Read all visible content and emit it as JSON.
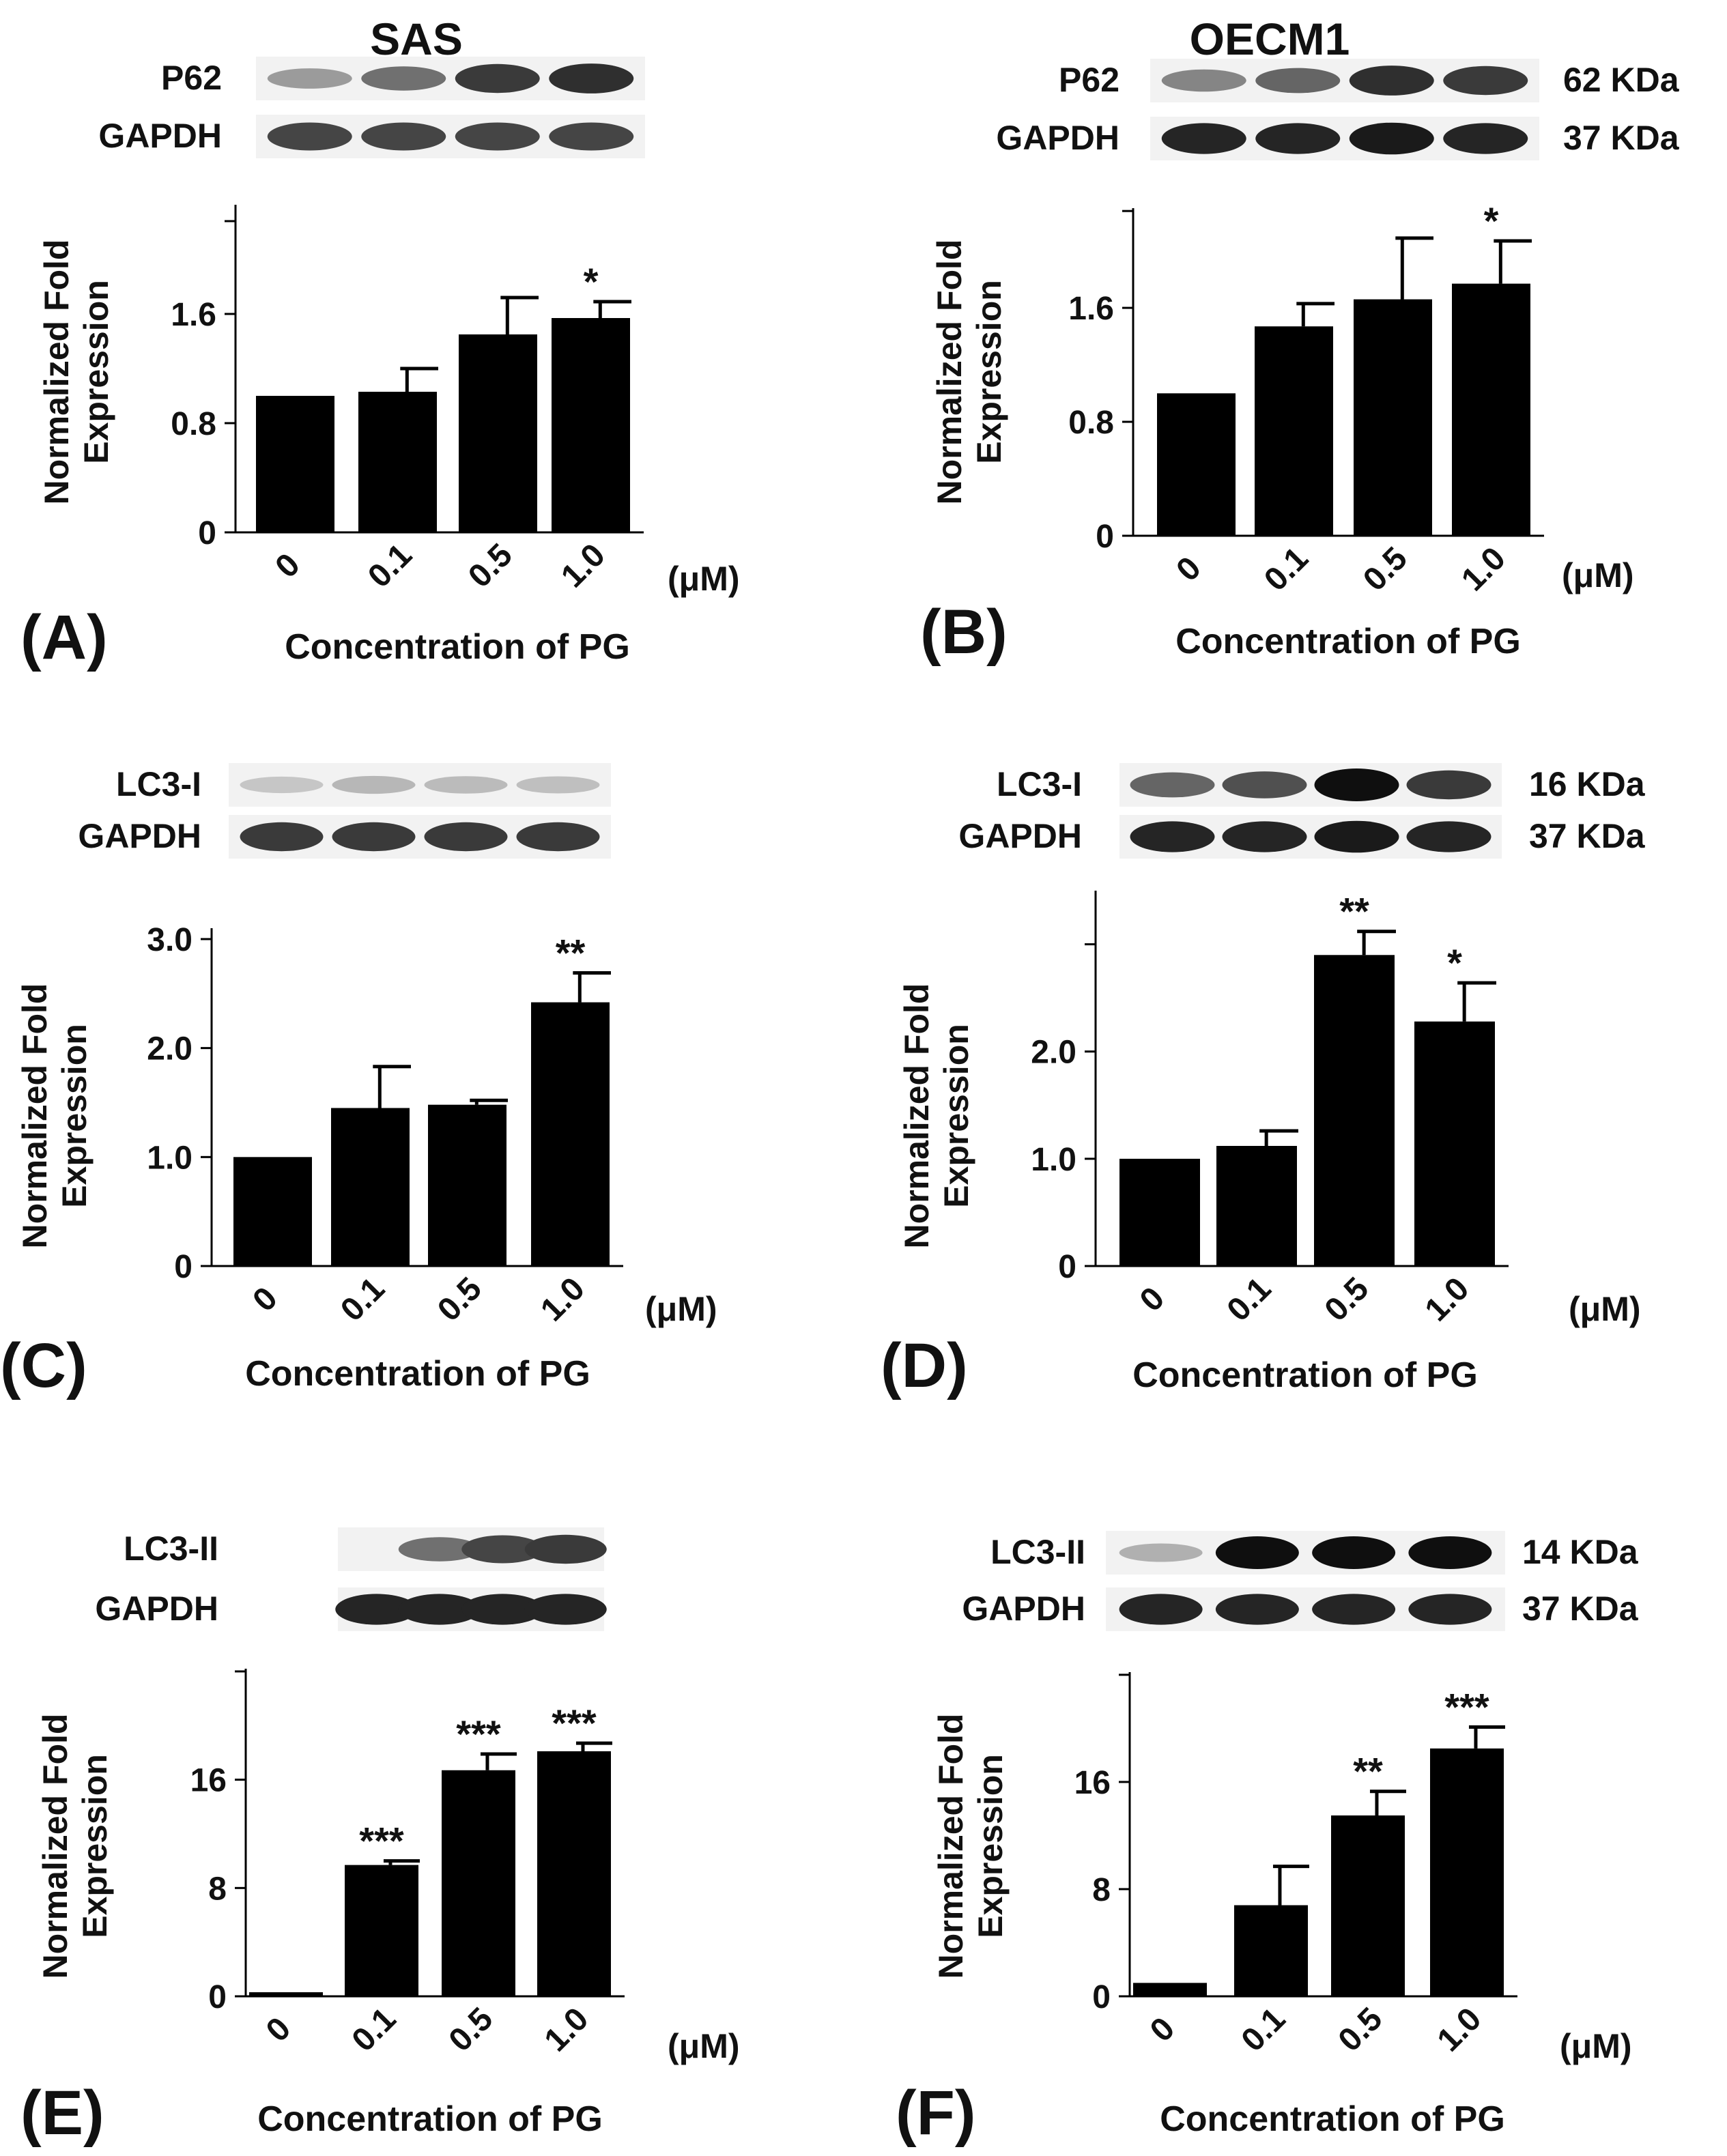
{
  "figure": {
    "columns": [
      "SAS",
      "OECM1"
    ],
    "x_axis_title": "Concentration of PG",
    "x_unit": "(μM)"
  },
  "chart_data": [
    {
      "type": "bar",
      "panel": "(A)",
      "cell_line": "SAS",
      "blots": [
        {
          "label": "P62",
          "kda": ""
        },
        {
          "label": "GAPDH",
          "kda": ""
        }
      ],
      "categories": [
        "0",
        "0.1",
        "0.5",
        "1.0"
      ],
      "values": [
        1.0,
        1.03,
        1.45,
        1.57
      ],
      "errors": [
        0,
        0.17,
        0.27,
        0.12
      ],
      "significance": [
        "",
        "",
        "",
        "*"
      ],
      "yticks": [
        "0",
        "0.8",
        "1.6"
      ],
      "ylim": [
        0,
        2.4
      ],
      "xlabel": "Concentration of PG",
      "ylabel": "Normalized Fold Expression"
    },
    {
      "type": "bar",
      "panel": "(B)",
      "cell_line": "OECM1",
      "blots": [
        {
          "label": "P62",
          "kda": "62 KDa"
        },
        {
          "label": "GAPDH",
          "kda": "37 KDa"
        }
      ],
      "categories": [
        "0",
        "0.1",
        "0.5",
        "1.0"
      ],
      "values": [
        1.0,
        1.47,
        1.66,
        1.77
      ],
      "errors": [
        0,
        0.16,
        0.43,
        0.3
      ],
      "significance": [
        "",
        "",
        "",
        "*"
      ],
      "yticks": [
        "0",
        "0.8",
        "1.6"
      ],
      "ylim": [
        0,
        2.3
      ],
      "xlabel": "Concentration of PG",
      "ylabel": "Normalized Fold Expression"
    },
    {
      "type": "bar",
      "panel": "(C)",
      "cell_line": "SAS",
      "blots": [
        {
          "label": "LC3-I",
          "kda": ""
        },
        {
          "label": "GAPDH",
          "kda": ""
        }
      ],
      "categories": [
        "0",
        "0.1",
        "0.5",
        "1.0"
      ],
      "values": [
        1.0,
        1.45,
        1.48,
        2.42
      ],
      "errors": [
        0,
        0.38,
        0.04,
        0.27
      ],
      "significance": [
        "",
        "",
        "",
        "**"
      ],
      "yticks": [
        "0",
        "1.0",
        "2.0",
        "3.0"
      ],
      "ylim": [
        0,
        3.1
      ],
      "xlabel": "Concentration of PG",
      "ylabel": "Normalized Fold Expression"
    },
    {
      "type": "bar",
      "panel": "(D)",
      "cell_line": "OECM1",
      "blots": [
        {
          "label": "LC3-I",
          "kda": "16 KDa"
        },
        {
          "label": "GAPDH",
          "kda": "37 KDa"
        }
      ],
      "categories": [
        "0",
        "0.1",
        "0.5",
        "1.0"
      ],
      "values": [
        1.0,
        1.12,
        2.9,
        2.28
      ],
      "errors": [
        0,
        0.14,
        0.22,
        0.36
      ],
      "significance": [
        "",
        "",
        "**",
        "*"
      ],
      "yticks": [
        "0",
        "1.0",
        "2.0"
      ],
      "ylim": [
        0,
        3.5
      ],
      "xlabel": "Concentration of PG",
      "ylabel": "Normalized Fold Expression"
    },
    {
      "type": "bar",
      "panel": "(E)",
      "cell_line": "SAS",
      "blots": [
        {
          "label": "LC3-II",
          "kda": ""
        },
        {
          "label": "GAPDH",
          "kda": ""
        }
      ],
      "categories": [
        "0",
        "0.1",
        "0.5",
        "1.0"
      ],
      "values": [
        0.3,
        9.7,
        16.7,
        18.1
      ],
      "errors": [
        0,
        0.3,
        1.2,
        0.6
      ],
      "significance": [
        "",
        "***",
        "***",
        "***"
      ],
      "yticks": [
        "0",
        "8",
        "16"
      ],
      "ylim": [
        0,
        24.2
      ],
      "xlabel": "Concentration of PG",
      "ylabel": "Normalized Fold Expression"
    },
    {
      "type": "bar",
      "panel": "(F)",
      "cell_line": "OECM1",
      "blots": [
        {
          "label": "LC3-II",
          "kda": "14 KDa"
        },
        {
          "label": "GAPDH",
          "kda": "37 KDa"
        }
      ],
      "categories": [
        "0",
        "0.1",
        "0.5",
        "1.0"
      ],
      "values": [
        1.0,
        6.8,
        13.5,
        18.5
      ],
      "errors": [
        0,
        2.9,
        1.8,
        1.6
      ],
      "significance": [
        "",
        "",
        "**",
        "***"
      ],
      "yticks": [
        "0",
        "8",
        "16"
      ],
      "ylim": [
        0,
        24.2
      ],
      "xlabel": "Concentration of PG",
      "ylabel": "Normalized Fold Expression"
    }
  ]
}
